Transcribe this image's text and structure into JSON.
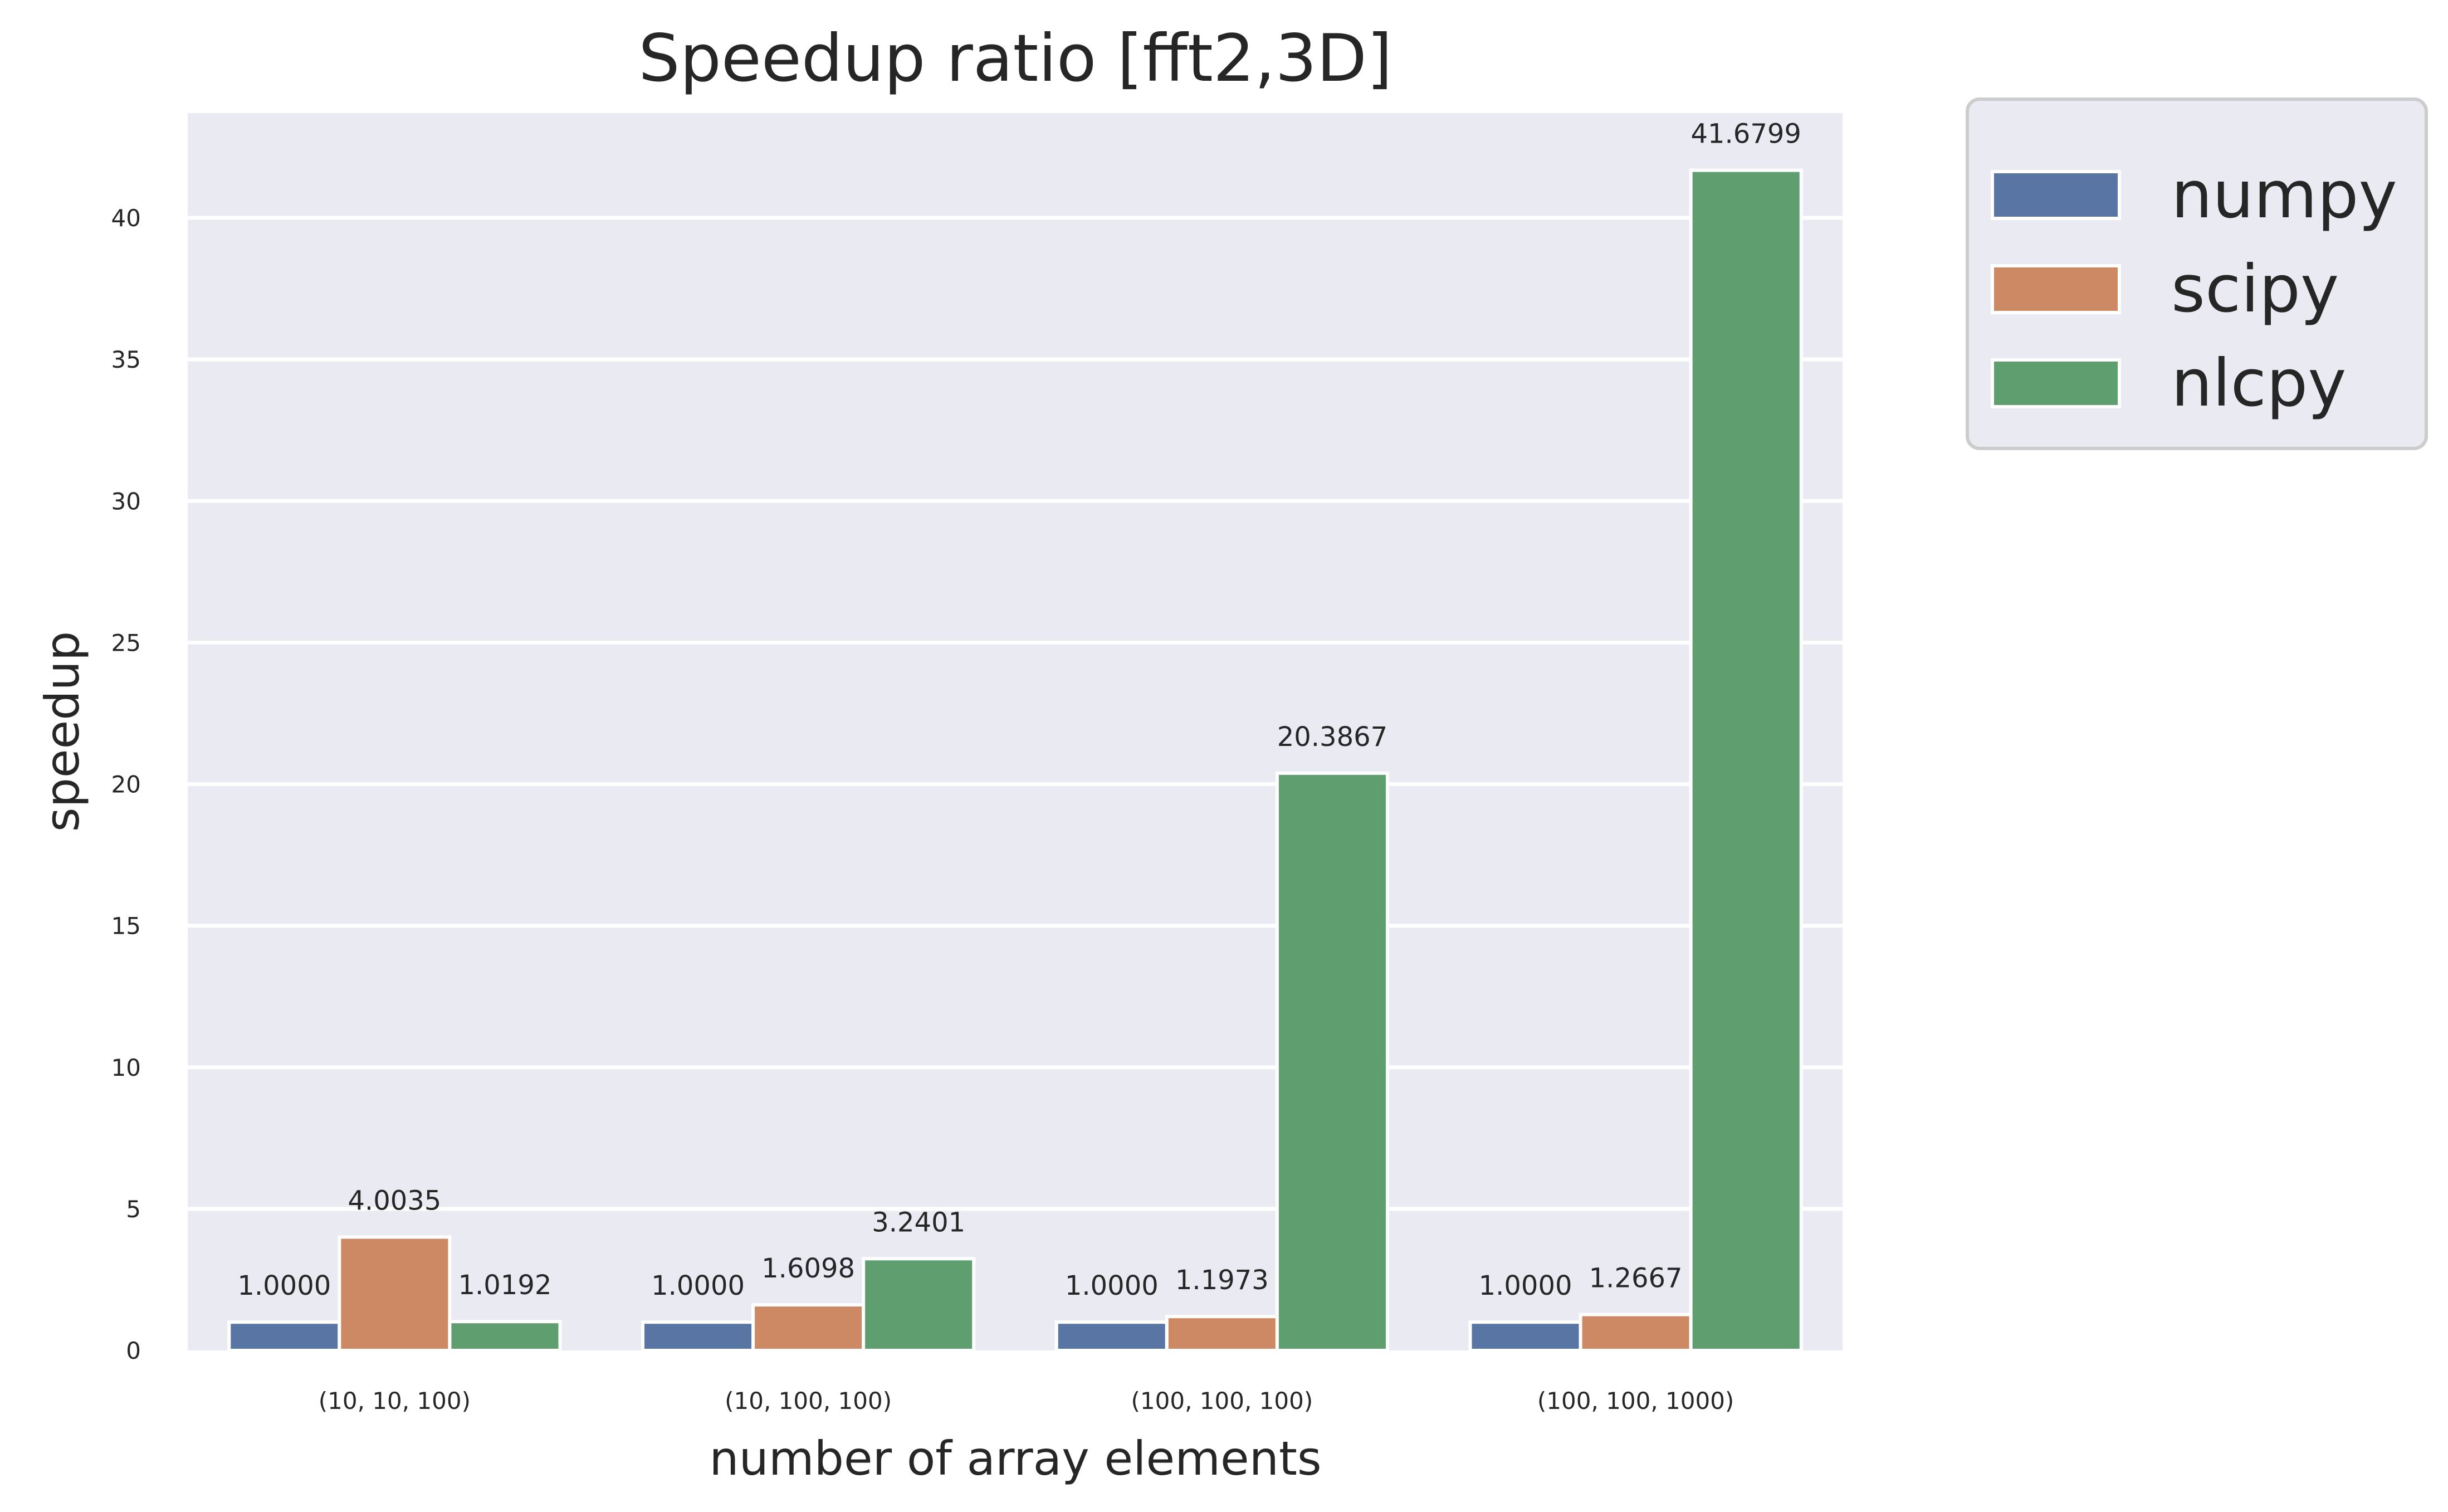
{
  "chart_data": {
    "type": "bar",
    "title": "Speedup ratio [fft2,3D]",
    "xlabel": "number of array elements",
    "ylabel": "speedup",
    "categories": [
      "(10, 10, 100)",
      "(10, 100, 100)",
      "(100, 100, 100)",
      "(100, 100, 1000)"
    ],
    "series": [
      {
        "name": "numpy",
        "color": "#5875a4",
        "values": [
          1.0,
          1.0,
          1.0,
          1.0
        ],
        "labels": [
          "1.0000",
          "1.0000",
          "1.0000",
          "1.0000"
        ]
      },
      {
        "name": "scipy",
        "color": "#cc8963",
        "values": [
          4.0035,
          1.6098,
          1.1973,
          1.2667
        ],
        "labels": [
          "4.0035",
          "1.6098",
          "1.1973",
          "1.2667"
        ]
      },
      {
        "name": "nlcpy",
        "color": "#5f9e6e",
        "values": [
          1.0192,
          3.2401,
          20.3867,
          41.6799
        ],
        "labels": [
          "1.0192",
          "3.2401",
          "20.3867",
          "41.6799"
        ]
      }
    ],
    "ylim": [
      0,
      43.7
    ],
    "yticks": [
      0,
      5,
      10,
      15,
      20,
      25,
      30,
      35,
      40
    ],
    "grid": true,
    "legend_position": "outside-top-right",
    "background_color": "#eaeaf2"
  }
}
